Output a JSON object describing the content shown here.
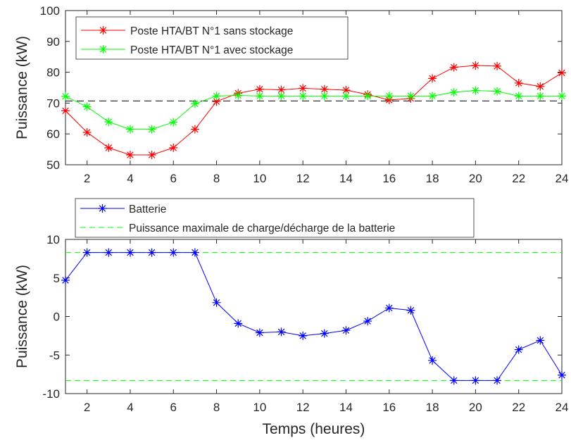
{
  "chart_data": [
    {
      "type": "line",
      "title": "",
      "xlabel": "",
      "ylabel": "Puissance (kW)",
      "xlim": [
        1,
        24
      ],
      "ylim": [
        50,
        100
      ],
      "xticks": [
        2,
        4,
        6,
        8,
        10,
        12,
        14,
        16,
        18,
        20,
        22,
        24
      ],
      "yticks": [
        50,
        60,
        70,
        80,
        90,
        100
      ],
      "grid": false,
      "legend_position": "top-left",
      "x": [
        1,
        2,
        3,
        4,
        5,
        6,
        7,
        8,
        9,
        10,
        11,
        12,
        13,
        14,
        15,
        16,
        17,
        18,
        19,
        20,
        21,
        22,
        23,
        24
      ],
      "series": [
        {
          "name": "Poste HTA/BT N°1 sans stockage",
          "color": "#ff0000",
          "marker": "asterisk",
          "values": [
            67.5,
            60.5,
            55.5,
            53.2,
            53.2,
            55.5,
            61.5,
            70.5,
            73.2,
            74.5,
            74.3,
            74.8,
            74.5,
            74.2,
            72.8,
            71.0,
            71.5,
            78.0,
            81.6,
            82.2,
            82.0,
            76.5,
            75.4,
            79.8
          ]
        },
        {
          "name": "Poste HTA/BT N°1 avec stockage",
          "color": "#00ff00",
          "marker": "asterisk",
          "values": [
            72.2,
            68.8,
            63.9,
            61.5,
            61.5,
            63.8,
            69.8,
            72.3,
            72.5,
            72.3,
            72.3,
            72.3,
            72.3,
            72.3,
            72.3,
            72.3,
            72.3,
            72.3,
            73.5,
            74.1,
            73.8,
            72.3,
            72.3,
            72.3
          ]
        }
      ],
      "reference_lines": [
        {
          "axis": "y",
          "value": 70.7,
          "color": "#000000",
          "style": "dashed"
        }
      ]
    },
    {
      "type": "line",
      "title": "",
      "xlabel": "Temps (heures)",
      "ylabel": "Puissance (kW)",
      "xlim": [
        1,
        24
      ],
      "ylim": [
        -10,
        10
      ],
      "xticks": [
        2,
        4,
        6,
        8,
        10,
        12,
        14,
        16,
        18,
        20,
        22,
        24
      ],
      "yticks": [
        -10,
        -5,
        0,
        5,
        10
      ],
      "grid": false,
      "legend_position": "top-outside",
      "x": [
        1,
        2,
        3,
        4,
        5,
        6,
        7,
        8,
        9,
        10,
        11,
        12,
        13,
        14,
        15,
        16,
        17,
        18,
        19,
        20,
        21,
        22,
        23,
        24
      ],
      "series": [
        {
          "name": "Batterie",
          "color": "#0000ff",
          "marker": "asterisk",
          "values": [
            4.7,
            8.3,
            8.3,
            8.3,
            8.3,
            8.3,
            8.3,
            1.8,
            -0.9,
            -2.1,
            -2.0,
            -2.5,
            -2.2,
            -1.8,
            -0.6,
            1.1,
            0.8,
            -5.7,
            -8.3,
            -8.3,
            -8.3,
            -4.3,
            -3.1,
            -7.6
          ]
        },
        {
          "name": "Puissance maximale de charge/décharge de la batterie",
          "color": "#00ff00",
          "style": "dashed",
          "values_horizontal": [
            8.3,
            -8.3
          ]
        }
      ]
    }
  ]
}
